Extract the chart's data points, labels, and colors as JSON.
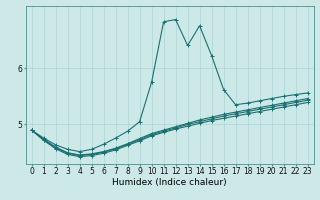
{
  "xlabel": "Humidex (Indice chaleur)",
  "background_color": "#cce9e8",
  "line_color": "#1a7070",
  "grid_color": "#aad4d3",
  "x_values": [
    0,
    1,
    2,
    3,
    4,
    5,
    6,
    7,
    8,
    9,
    10,
    11,
    12,
    13,
    14,
    15,
    16,
    17,
    18,
    19,
    20,
    21,
    22,
    23
  ],
  "line1_y": [
    4.9,
    4.76,
    4.64,
    4.56,
    4.52,
    4.56,
    4.65,
    4.76,
    4.88,
    5.05,
    5.75,
    6.82,
    6.86,
    6.4,
    6.75,
    6.22,
    5.62,
    5.35,
    5.38,
    5.42,
    5.46,
    5.5,
    5.53,
    5.56
  ],
  "line2_y": [
    4.9,
    4.74,
    4.6,
    4.5,
    4.46,
    4.48,
    4.52,
    4.58,
    4.66,
    4.75,
    4.84,
    4.9,
    4.96,
    5.02,
    5.08,
    5.13,
    5.18,
    5.22,
    5.26,
    5.3,
    5.34,
    5.38,
    5.42,
    5.46
  ],
  "line3_y": [
    4.9,
    4.73,
    4.59,
    4.49,
    4.45,
    4.47,
    4.51,
    4.57,
    4.65,
    4.73,
    4.82,
    4.88,
    4.94,
    5.0,
    5.05,
    5.1,
    5.15,
    5.19,
    5.23,
    5.27,
    5.31,
    5.35,
    5.39,
    5.43
  ],
  "line4_y": [
    4.9,
    4.72,
    4.57,
    4.47,
    4.43,
    4.45,
    4.49,
    4.55,
    4.63,
    4.71,
    4.8,
    4.86,
    4.92,
    4.97,
    5.02,
    5.07,
    5.11,
    5.15,
    5.19,
    5.23,
    5.27,
    5.31,
    5.35,
    5.39
  ],
  "ylim": [
    4.3,
    7.1
  ],
  "yticks": [
    5,
    6
  ],
  "xlim": [
    -0.5,
    23.5
  ],
  "xticks": [
    0,
    1,
    2,
    3,
    4,
    5,
    6,
    7,
    8,
    9,
    10,
    11,
    12,
    13,
    14,
    15,
    16,
    17,
    18,
    19,
    20,
    21,
    22,
    23
  ],
  "xlabel_fontsize": 6.5,
  "tick_fontsize": 5.5,
  "figsize": [
    3.2,
    2.0
  ],
  "dpi": 100
}
